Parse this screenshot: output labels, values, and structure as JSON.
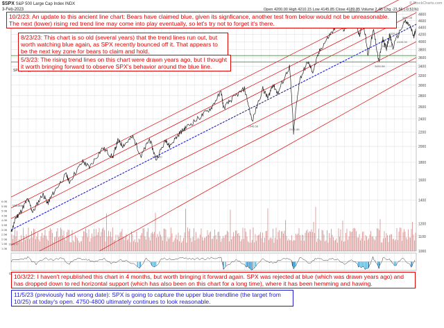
{
  "header": {
    "symbol": "$SPX",
    "description": "S&P 500 Large Cap Index  INDX",
    "date": "3-Feb-2023",
    "ohlc": "Open 4200.00  High 4210.15  Low 4145.85  Close 4189.85  Volume 2.4B  Chg -21.56 (-0.51%)",
    "watermark": "© StockCharts.com"
  },
  "notes": [
    {
      "id": "oct-2-23",
      "text": "10/2/23:  An update to this ancient line chart:  Bears have claimed blue, given its signficance, another test from below would not be unreasonable.  The next (lower) rising red trend line may come into play eventually, so let's try not to forget it's there."
    },
    {
      "id": "aug-23-23",
      "text": "8/23/23:  This chart is so old (several years) that the trend lines run out, but worth watching blue again, as SPX recently bounced off it.  That appears to be the next key zone for bears to claim and hold."
    },
    {
      "id": "may-3-23",
      "text": "5/3/23: The rising trend lines on this chart were drawn years ago, but I thought it worth bringing forward to observe SPX's behavior around the blue line."
    },
    {
      "id": "oct-3-22",
      "text": "10/3/22:  I haven't republished this chart in 4 months, but worth bringing it forward again.  SPX was rejected at blue (which was drawn years ago) and has dropped down to red horizontal support (which has also been on this chart for a long time), where it has been hemming and hawing."
    },
    {
      "id": "nov-5-23",
      "text": "11/5/23 (previously had wrong date):  SPX is going to capture the upper blue trendline (the target from 10/25) at today's open.  4750-4800 ultimately continues to look reasonable."
    }
  ],
  "colors": {
    "price": "#222222",
    "red_trend": "#dd0000",
    "blue_trend": "#1a1ad0",
    "support": "#2a7a2a",
    "volume": "#c05858",
    "indicator": "#333333",
    "indicator_fill": "#2a8fc8",
    "grid": "#d0d0d0",
    "bg": "#ffffff"
  },
  "chart_data": {
    "type": "line",
    "title": "$SPX S&P 500 Large Cap Index",
    "legend": "SPX (Daily) 4189.85",
    "price_axis_label": "log scale",
    "y_ticks": [
      4800,
      4600,
      4400,
      4200,
      4000,
      3800,
      3600,
      3400,
      3200,
      3000,
      2800,
      2600,
      2400,
      2200,
      2000,
      1800,
      1600,
      1400,
      1200,
      1100,
      1000
    ],
    "ylim": [
      1000,
      4900
    ],
    "x_tick_labels": [
      "Oct",
      "2012",
      "Apr",
      "Jul",
      "Oct",
      "2013",
      "Apr",
      "Jul",
      "Oct",
      "2014",
      "Apr",
      "Jul",
      "Oct",
      "2015",
      "Apr",
      "Jul",
      "Oct",
      "2016",
      "Apr",
      "Jul",
      "Oct",
      "2017",
      "Apr",
      "Jul",
      "Oct",
      "2018",
      "Apr",
      "Jul",
      "Oct",
      "2019",
      "Apr",
      "Jul",
      "Oct",
      "2020",
      "Apr",
      "Jul",
      "Oct",
      "2021",
      "Apr",
      "Jul",
      "Oct",
      "2022",
      "Apr",
      "Jul",
      "Oct",
      "2023",
      "Apr",
      "Jul",
      "Oct"
    ],
    "xlim": [
      2011.75,
      2023.9
    ],
    "series": [
      {
        "name": "SPX",
        "points": [
          [
            2011.75,
            1130
          ],
          [
            2011.9,
            1250
          ],
          [
            2012.0,
            1280
          ],
          [
            2012.25,
            1410
          ],
          [
            2012.4,
            1290
          ],
          [
            2012.7,
            1460
          ],
          [
            2012.85,
            1370
          ],
          [
            2013.0,
            1460
          ],
          [
            2013.4,
            1660
          ],
          [
            2013.5,
            1580
          ],
          [
            2013.9,
            1810
          ],
          [
            2014.1,
            1740
          ],
          [
            2014.5,
            1980
          ],
          [
            2014.8,
            1860
          ],
          [
            2014.95,
            2080
          ],
          [
            2015.1,
            2010
          ],
          [
            2015.4,
            2130
          ],
          [
            2015.65,
            1870
          ],
          [
            2015.9,
            2100
          ],
          [
            2016.1,
            1830
          ],
          [
            2016.4,
            2090
          ],
          [
            2016.5,
            2000
          ],
          [
            2016.8,
            2180
          ],
          [
            2017.0,
            2270
          ],
          [
            2017.4,
            2420
          ],
          [
            2017.75,
            2580
          ],
          [
            2018.05,
            2870
          ],
          [
            2018.12,
            2580
          ],
          [
            2018.4,
            2750
          ],
          [
            2018.75,
            2930
          ],
          [
            2018.98,
            2350
          ],
          [
            2019.3,
            2930
          ],
          [
            2019.45,
            2750
          ],
          [
            2019.6,
            3020
          ],
          [
            2019.75,
            2840
          ],
          [
            2020.1,
            3390
          ],
          [
            2020.22,
            2190
          ],
          [
            2020.4,
            3100
          ],
          [
            2020.65,
            3500
          ],
          [
            2020.8,
            3270
          ],
          [
            2021.0,
            3760
          ],
          [
            2021.3,
            4180
          ],
          [
            2021.6,
            4530
          ],
          [
            2021.75,
            4300
          ],
          [
            2022.0,
            4790
          ],
          [
            2022.2,
            4170
          ],
          [
            2022.3,
            4630
          ],
          [
            2022.45,
            3670
          ],
          [
            2022.62,
            4300
          ],
          [
            2022.78,
            3490
          ],
          [
            2022.9,
            4080
          ],
          [
            2023.0,
            3800
          ],
          [
            2023.1,
            4180
          ],
          [
            2023.2,
            3850
          ],
          [
            2023.55,
            4580
          ],
          [
            2023.7,
            4460
          ],
          [
            2023.83,
            4120
          ],
          [
            2023.88,
            4360
          ]
        ]
      },
      {
        "name": "indicator",
        "ylim": [
          -100,
          100
        ],
        "points": [
          [
            2011.75,
            10
          ],
          [
            2012.0,
            25
          ],
          [
            2012.25,
            50
          ],
          [
            2012.5,
            -30
          ],
          [
            2012.75,
            40
          ],
          [
            2013.0,
            20
          ],
          [
            2013.25,
            45
          ],
          [
            2013.5,
            -20
          ],
          [
            2013.75,
            35
          ],
          [
            2014.0,
            30
          ],
          [
            2014.25,
            -10
          ],
          [
            2014.5,
            40
          ],
          [
            2014.75,
            -25
          ],
          [
            2015.0,
            20
          ],
          [
            2015.25,
            10
          ],
          [
            2015.6,
            -70
          ],
          [
            2015.8,
            30
          ],
          [
            2016.05,
            -60
          ],
          [
            2016.3,
            40
          ],
          [
            2016.6,
            25
          ],
          [
            2016.9,
            45
          ],
          [
            2017.2,
            30
          ],
          [
            2017.5,
            35
          ],
          [
            2017.8,
            40
          ],
          [
            2018.05,
            50
          ],
          [
            2018.12,
            -75
          ],
          [
            2018.5,
            30
          ],
          [
            2018.8,
            -50
          ],
          [
            2018.98,
            -85
          ],
          [
            2019.3,
            45
          ],
          [
            2019.6,
            -20
          ],
          [
            2019.9,
            40
          ],
          [
            2020.15,
            30
          ],
          [
            2020.22,
            -95
          ],
          [
            2020.4,
            50
          ],
          [
            2020.7,
            -20
          ],
          [
            2020.9,
            40
          ],
          [
            2021.2,
            25
          ],
          [
            2021.5,
            30
          ],
          [
            2021.75,
            -30
          ],
          [
            2022.0,
            20
          ],
          [
            2022.2,
            -60
          ],
          [
            2022.45,
            -80
          ],
          [
            2022.6,
            45
          ],
          [
            2022.78,
            -70
          ],
          [
            2022.9,
            40
          ],
          [
            2023.1,
            30
          ],
          [
            2023.25,
            -45
          ],
          [
            2023.5,
            40
          ],
          [
            2023.75,
            -55
          ],
          [
            2023.88,
            20
          ]
        ]
      }
    ],
    "trend_lines": {
      "blue": [
        [
          2011.75,
          1150
        ],
        [
          2023.9,
          4490
        ]
      ],
      "red": [
        [
          [
            2011.75,
            1430
          ],
          [
            2023.9,
            5600
          ]
        ],
        [
          [
            2011.75,
            1330
          ],
          [
            2023.9,
            5200
          ]
        ],
        [
          [
            2011.75,
            1240
          ],
          [
            2023.9,
            4850
          ]
        ],
        [
          [
            2011.75,
            1040
          ],
          [
            2023.9,
            4000
          ]
        ],
        [
          [
            2012.6,
            1000
          ],
          [
            2023.9,
            3600
          ]
        ],
        [
          [
            2014.4,
            1000
          ],
          [
            2023.9,
            3250
          ]
        ]
      ]
    },
    "horizontal_support": [
      3650,
      3500
    ],
    "annotations": [
      "4818.62",
      "3491.58",
      "2191.86",
      "2346.58",
      "1810.10",
      "4325.28",
      "3808.10",
      "4100.00",
      "4600.00",
      "1074.77"
    ],
    "volume": {
      "label": "Volume",
      "ticks": [
        "6.0B",
        "5.5B",
        "5.0B",
        "4.5B",
        "4.0B",
        "3.5B",
        "3.0B",
        "2.5B",
        "2.0B",
        "1.5B",
        "1.0B"
      ]
    }
  }
}
